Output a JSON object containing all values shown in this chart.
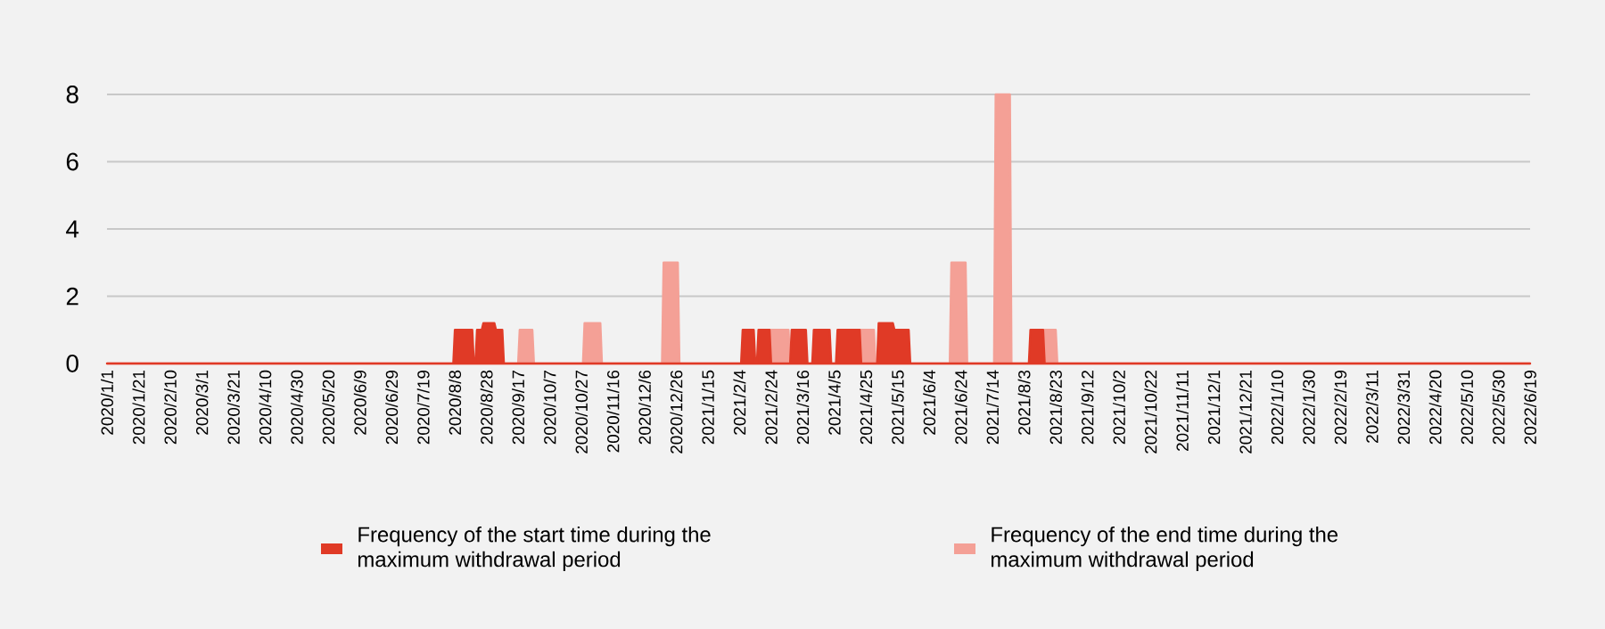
{
  "chart_data": {
    "type": "area",
    "xlim": [
      "2020-01-01",
      "2022-06-19"
    ],
    "xticks": [
      {
        "value": "2020-01-01",
        "label": "2020/1/1"
      },
      {
        "value": "2020-01-21",
        "label": "2020/1/21"
      },
      {
        "value": "2020-02-10",
        "label": "2020/2/10"
      },
      {
        "value": "2020-03-01",
        "label": "2020/3/1"
      },
      {
        "value": "2020-03-21",
        "label": "2020/3/21"
      },
      {
        "value": "2020-04-10",
        "label": "2020/4/10"
      },
      {
        "value": "2020-04-30",
        "label": "2020/4/30"
      },
      {
        "value": "2020-05-20",
        "label": "2020/5/20"
      },
      {
        "value": "2020-06-09",
        "label": "2020/6/9"
      },
      {
        "value": "2020-06-29",
        "label": "2020/6/29"
      },
      {
        "value": "2020-07-19",
        "label": "2020/7/19"
      },
      {
        "value": "2020-08-08",
        "label": "2020/8/8"
      },
      {
        "value": "2020-08-28",
        "label": "2020/8/28"
      },
      {
        "value": "2020-09-17",
        "label": "2020/9/17"
      },
      {
        "value": "2020-10-07",
        "label": "2020/10/7"
      },
      {
        "value": "2020-10-27",
        "label": "2020/10/27"
      },
      {
        "value": "2020-11-16",
        "label": "2020/11/16"
      },
      {
        "value": "2020-12-06",
        "label": "2020/12/6"
      },
      {
        "value": "2020-12-26",
        "label": "2020/12/26"
      },
      {
        "value": "2021-01-15",
        "label": "2021/1/15"
      },
      {
        "value": "2021-02-04",
        "label": "2021/2/4"
      },
      {
        "value": "2021-02-24",
        "label": "2021/2/24"
      },
      {
        "value": "2021-03-16",
        "label": "2021/3/16"
      },
      {
        "value": "2021-04-05",
        "label": "2021/4/5"
      },
      {
        "value": "2021-04-25",
        "label": "2021/4/25"
      },
      {
        "value": "2021-05-15",
        "label": "2021/5/15"
      },
      {
        "value": "2021-06-04",
        "label": "2021/6/4"
      },
      {
        "value": "2021-06-24",
        "label": "2021/6/24"
      },
      {
        "value": "2021-07-14",
        "label": "2021/7/14"
      },
      {
        "value": "2021-08-03",
        "label": "2021/8/3"
      },
      {
        "value": "2021-08-23",
        "label": "2021/8/23"
      },
      {
        "value": "2021-09-12",
        "label": "2021/9/12"
      },
      {
        "value": "2021-10-02",
        "label": "2021/10/2"
      },
      {
        "value": "2021-10-22",
        "label": "2021/10/22"
      },
      {
        "value": "2021-11-11",
        "label": "2021/11/11"
      },
      {
        "value": "2021-12-01",
        "label": "2021/12/1"
      },
      {
        "value": "2021-12-21",
        "label": "2021/12/21"
      },
      {
        "value": "2022-01-10",
        "label": "2022/1/10"
      },
      {
        "value": "2022-01-30",
        "label": "2022/1/30"
      },
      {
        "value": "2022-02-19",
        "label": "2022/2/19"
      },
      {
        "value": "2022-03-11",
        "label": "2022/3/11"
      },
      {
        "value": "2022-03-31",
        "label": "2022/3/31"
      },
      {
        "value": "2022-04-20",
        "label": "2022/4/20"
      },
      {
        "value": "2022-05-10",
        "label": "2022/5/10"
      },
      {
        "value": "2022-05-30",
        "label": "2022/5/30"
      },
      {
        "value": "2022-06-19",
        "label": "2022/6/19"
      }
    ],
    "ylim": [
      0,
      8
    ],
    "yticks": [
      0,
      2,
      4,
      6,
      8
    ],
    "grid": "y",
    "legend": "bottom",
    "series": [
      {
        "name": "Frequency of the start time during the maximum withdrawal period",
        "color": "#e03a26",
        "x": [
          "2020-01-01",
          "2020-08-07",
          "2020-08-08",
          "2020-08-19",
          "2020-08-20",
          "2020-08-21",
          "2020-08-22",
          "2020-08-25",
          "2020-08-26",
          "2020-09-02",
          "2020-09-03",
          "2020-09-07",
          "2020-09-08",
          "2021-02-05",
          "2021-02-06",
          "2021-02-13",
          "2021-02-14",
          "2021-02-15",
          "2021-02-16",
          "2021-02-23",
          "2021-02-24",
          "2021-03-08",
          "2021-03-09",
          "2021-03-18",
          "2021-03-19",
          "2021-03-22",
          "2021-03-23",
          "2021-04-02",
          "2021-04-03",
          "2021-04-06",
          "2021-04-07",
          "2021-04-21",
          "2021-04-22",
          "2021-05-02",
          "2021-05-03",
          "2021-05-12",
          "2021-05-13",
          "2021-05-22",
          "2021-05-23",
          "2021-08-06",
          "2021-08-07",
          "2021-08-15",
          "2021-08-16",
          "2022-06-19"
        ],
        "values": [
          0,
          0,
          1,
          1,
          0,
          0,
          1,
          1,
          1.2,
          1.2,
          1,
          1,
          0,
          0,
          1,
          1,
          0,
          0,
          1,
          1,
          0,
          0,
          1,
          1,
          0,
          0,
          1,
          1,
          0,
          0,
          1,
          1,
          0,
          0,
          1.2,
          1.2,
          1,
          1,
          0,
          0,
          1,
          1,
          0,
          0
        ]
      },
      {
        "name": "Frequency of the end time during the maximum withdrawal period",
        "color": "#f4a096",
        "x": [
          "2020-01-01",
          "2020-09-17",
          "2020-09-18",
          "2020-09-26",
          "2020-09-27",
          "2020-10-28",
          "2020-10-29",
          "2020-11-08",
          "2020-11-09",
          "2020-12-17",
          "2020-12-18",
          "2020-12-27",
          "2020-12-28",
          "2021-02-22",
          "2021-02-23",
          "2021-03-07",
          "2021-03-08",
          "2021-04-20",
          "2021-04-21",
          "2021-04-30",
          "2021-05-01",
          "2021-06-17",
          "2021-06-18",
          "2021-06-27",
          "2021-06-28",
          "2021-07-15",
          "2021-07-16",
          "2021-07-25",
          "2021-07-26",
          "2021-08-14",
          "2021-08-15",
          "2021-08-23",
          "2021-08-24",
          "2022-06-19"
        ],
        "values": [
          0,
          0,
          1,
          1,
          0,
          0,
          1.2,
          1.2,
          0,
          0,
          3,
          3,
          0,
          0,
          1,
          1,
          0,
          0,
          1,
          1,
          0,
          0,
          3,
          3,
          0,
          0,
          8,
          8,
          0,
          0,
          1,
          1,
          0,
          0
        ]
      }
    ]
  }
}
